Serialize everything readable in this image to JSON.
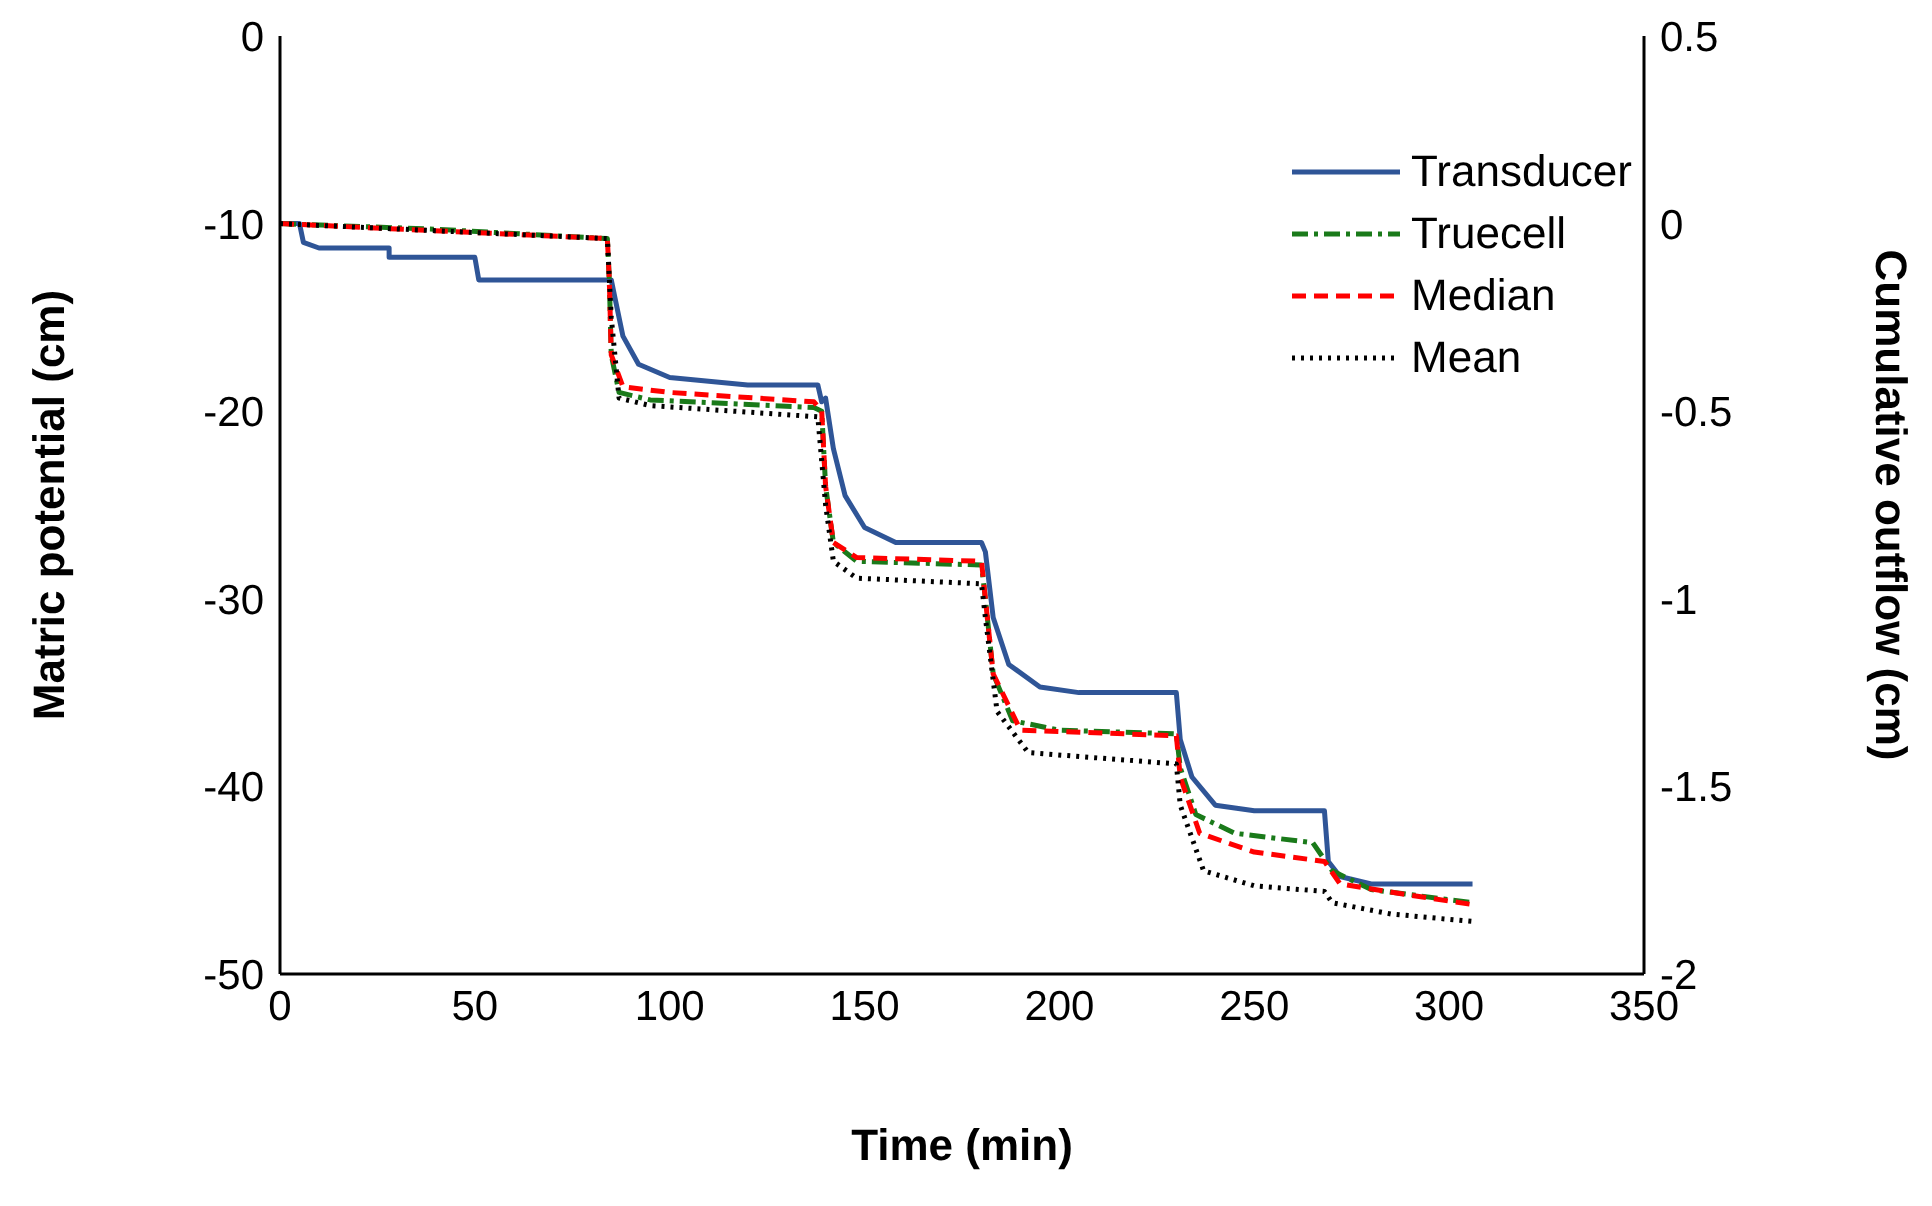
{
  "chart_data": {
    "type": "line",
    "xlabel": "Time (min)",
    "ylabel": "Matric potential (cm)",
    "y2label": "Cumulative outflow (cm)",
    "xlim": [
      0,
      350
    ],
    "xticks": [
      0,
      50,
      100,
      150,
      200,
      250,
      300,
      350
    ],
    "ylim": [
      -50,
      0
    ],
    "yticks": [
      -50,
      -40,
      -30,
      -20,
      -10,
      0
    ],
    "y2lim": [
      -2,
      0.5
    ],
    "y2ticks": [
      -2,
      -1.5,
      -1,
      -0.5,
      0,
      0.5
    ],
    "grid": false,
    "legend": "top right",
    "marker": "none",
    "series": [
      {
        "name": "Transducer",
        "color": "#2f5597",
        "line_style": "solid",
        "x": [
          0,
          5,
          6,
          10,
          28,
          28,
          50,
          51,
          85,
          86,
          88,
          92,
          100,
          120,
          138,
          139,
          140,
          142,
          145,
          150,
          158,
          180,
          181,
          183,
          187,
          195,
          205,
          230,
          231,
          234,
          240,
          250,
          268,
          269,
          272,
          280,
          306
        ],
        "values": [
          -10,
          -10,
          -11,
          -11.3,
          -11.3,
          -11.8,
          -11.8,
          -13,
          -13,
          -14,
          -16,
          -17.5,
          -18.2,
          -18.6,
          -18.6,
          -19.5,
          -19.3,
          -22,
          -24.5,
          -26.2,
          -27,
          -27,
          -27.5,
          -31,
          -33.5,
          -34.7,
          -35,
          -35,
          -37.5,
          -39.5,
          -41,
          -41.3,
          -41.3,
          -44,
          -44.8,
          -45.2,
          -45.2
        ]
      },
      {
        "name": "Truecell",
        "color": "#1a7a1a",
        "line_style": "dashdot",
        "x": [
          0,
          40,
          84,
          84.5,
          85,
          87,
          95,
          137,
          139,
          140,
          142,
          148,
          180,
          181,
          183,
          188,
          200,
          230,
          231,
          235,
          245,
          265,
          270,
          280,
          306
        ],
        "values": [
          -10,
          -10.3,
          -10.8,
          -13,
          -17,
          -19,
          -19.4,
          -19.8,
          -20,
          -24,
          -27,
          -28,
          -28.2,
          -30,
          -34,
          -36.5,
          -37,
          -37.2,
          -39,
          -41.5,
          -42.5,
          -43,
          -44.5,
          -45.5,
          -46.2
        ]
      },
      {
        "name": "Median",
        "color": "#ff0000",
        "line_style": "dashed",
        "x": [
          0,
          84,
          84.5,
          85,
          88,
          100,
          137,
          139,
          140,
          142,
          148,
          180,
          181,
          183,
          190,
          230,
          231,
          236,
          250,
          268,
          272,
          290,
          306
        ],
        "values": [
          -10,
          -10.8,
          -13,
          -17,
          -18.7,
          -19,
          -19.5,
          -20,
          -24,
          -27,
          -27.8,
          -28,
          -30,
          -34,
          -37,
          -37.3,
          -39.5,
          -42.5,
          -43.5,
          -44,
          -45.2,
          -45.8,
          -46.3
        ]
      },
      {
        "name": "Mean",
        "color": "#000000",
        "line_style": "dotted",
        "x": [
          0,
          84,
          85,
          87,
          95,
          138,
          140,
          142,
          148,
          180,
          181,
          184,
          192,
          230,
          231,
          237,
          250,
          268,
          270,
          285,
          306
        ],
        "values": [
          -10,
          -10.8,
          -15,
          -19.3,
          -19.7,
          -20.3,
          -25,
          -28,
          -28.9,
          -29.2,
          -31,
          -36,
          -38.2,
          -38.8,
          -41,
          -44.5,
          -45.3,
          -45.6,
          -46.2,
          -46.8,
          -47.2
        ]
      }
    ]
  }
}
